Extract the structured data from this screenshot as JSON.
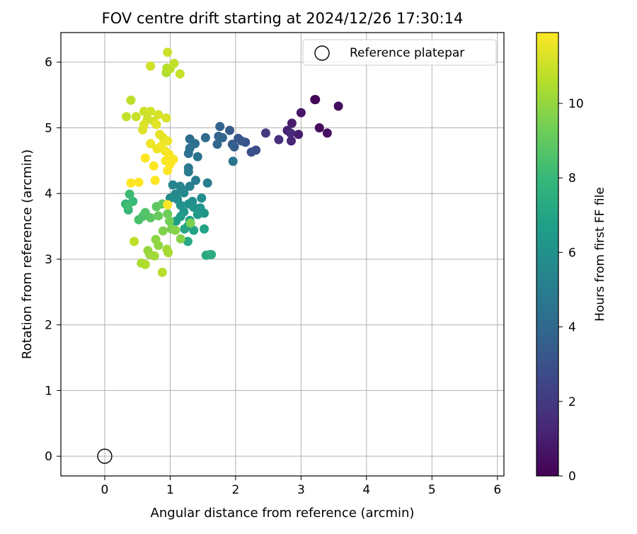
{
  "chart_data": {
    "type": "scatter",
    "title": "FOV centre drift starting at 2024/12/26 17:30:14",
    "xlabel": "Angular distance from reference (arcmin)",
    "ylabel": "Rotation from reference (arcmin)",
    "xlim": [
      -0.67,
      6.1
    ],
    "ylim": [
      -0.3,
      6.45
    ],
    "xticks": [
      0,
      1,
      2,
      3,
      4,
      5,
      6
    ],
    "yticks": [
      0,
      1,
      2,
      3,
      4,
      5,
      6
    ],
    "grid": true,
    "legend": {
      "position": "top-right",
      "entries": [
        "Reference platepar"
      ]
    },
    "colorbar": {
      "label": "Hours from first FF file",
      "colormap": "viridis",
      "range": [
        0,
        11.9
      ],
      "ticks": [
        0,
        2,
        4,
        6,
        8,
        10
      ]
    },
    "reference_point": {
      "x": 0,
      "y": 0
    },
    "points": [
      [
        3.21,
        5.43,
        0.0
      ],
      [
        3.22,
        5.43,
        0.1
      ],
      [
        3.28,
        5.0,
        0.3
      ],
      [
        3.57,
        5.33,
        0.4
      ],
      [
        3.4,
        4.92,
        0.5
      ],
      [
        3.0,
        5.23,
        0.7
      ],
      [
        2.86,
        5.07,
        0.9
      ],
      [
        2.96,
        4.9,
        1.0
      ],
      [
        2.79,
        4.96,
        1.1
      ],
      [
        2.85,
        4.8,
        1.3
      ],
      [
        2.84,
        4.92,
        1.4
      ],
      [
        2.66,
        4.82,
        1.6
      ],
      [
        2.46,
        4.92,
        2.0
      ],
      [
        2.31,
        4.66,
        2.8
      ],
      [
        2.24,
        4.63,
        3.0
      ],
      [
        2.15,
        4.78,
        3.1
      ],
      [
        2.04,
        4.84,
        3.2
      ],
      [
        2.09,
        4.8,
        3.3
      ],
      [
        1.91,
        4.96,
        3.4
      ],
      [
        1.95,
        4.75,
        3.5
      ],
      [
        1.98,
        4.71,
        3.6
      ],
      [
        1.76,
        5.02,
        3.7
      ],
      [
        1.74,
        4.87,
        3.8
      ],
      [
        1.8,
        4.85,
        3.9
      ],
      [
        1.72,
        4.75,
        4.0
      ],
      [
        1.54,
        4.85,
        4.1
      ],
      [
        1.3,
        4.83,
        4.2
      ],
      [
        1.38,
        4.76,
        4.3
      ],
      [
        1.3,
        4.69,
        4.4
      ],
      [
        1.28,
        4.61,
        4.5
      ],
      [
        1.42,
        4.56,
        4.6
      ],
      [
        1.96,
        4.49,
        4.7
      ],
      [
        1.28,
        4.39,
        4.8
      ],
      [
        1.28,
        4.33,
        4.9
      ],
      [
        1.39,
        4.2,
        5.0
      ],
      [
        1.57,
        4.16,
        5.1
      ],
      [
        1.3,
        4.11,
        5.2
      ],
      [
        1.2,
        4.05,
        5.3
      ],
      [
        1.15,
        4.11,
        5.4
      ],
      [
        1.04,
        4.13,
        5.4
      ],
      [
        1.08,
        3.99,
        5.5
      ],
      [
        1.21,
        4.01,
        5.6
      ],
      [
        1.11,
        3.91,
        5.7
      ],
      [
        1.0,
        3.93,
        5.7
      ],
      [
        1.48,
        3.93,
        5.8
      ],
      [
        1.34,
        3.88,
        5.9
      ],
      [
        1.28,
        3.84,
        6.0
      ],
      [
        1.16,
        3.82,
        6.0
      ],
      [
        1.36,
        3.79,
        6.1
      ],
      [
        1.46,
        3.78,
        6.2
      ],
      [
        1.52,
        3.7,
        6.3
      ],
      [
        1.21,
        3.72,
        6.3
      ],
      [
        1.42,
        3.68,
        6.4
      ],
      [
        1.16,
        3.65,
        6.5
      ],
      [
        1.3,
        3.59,
        6.6
      ],
      [
        1.09,
        3.58,
        6.6
      ],
      [
        1.27,
        3.5,
        6.7
      ],
      [
        1.52,
        3.46,
        6.8
      ],
      [
        1.36,
        3.44,
        6.9
      ],
      [
        1.22,
        3.46,
        7.0
      ],
      [
        1.27,
        3.27,
        7.1
      ],
      [
        1.55,
        3.06,
        7.2
      ],
      [
        1.61,
        3.07,
        7.3
      ],
      [
        1.63,
        3.07,
        7.4
      ],
      [
        0.32,
        3.84,
        7.8
      ],
      [
        0.36,
        3.75,
        7.9
      ],
      [
        0.43,
        3.88,
        8.0
      ],
      [
        0.38,
        3.99,
        8.1
      ],
      [
        0.35,
        3.81,
        8.2
      ],
      [
        0.52,
        3.6,
        8.4
      ],
      [
        0.58,
        3.65,
        8.5
      ],
      [
        0.62,
        3.71,
        8.6
      ],
      [
        0.7,
        3.63,
        8.8
      ],
      [
        0.79,
        3.8,
        8.9
      ],
      [
        0.88,
        3.84,
        9.0
      ],
      [
        0.82,
        3.66,
        9.1
      ],
      [
        0.96,
        3.69,
        9.2
      ],
      [
        0.99,
        3.58,
        9.3
      ],
      [
        1.02,
        3.46,
        9.4
      ],
      [
        1.31,
        3.55,
        9.5
      ],
      [
        0.89,
        3.43,
        9.6
      ],
      [
        1.08,
        3.44,
        9.7
      ],
      [
        1.16,
        3.31,
        9.7
      ],
      [
        0.78,
        3.3,
        9.8
      ],
      [
        0.82,
        3.21,
        9.9
      ],
      [
        0.66,
        3.13,
        10.0
      ],
      [
        0.69,
        3.07,
        10.1
      ],
      [
        0.76,
        3.05,
        10.2
      ],
      [
        0.95,
        3.15,
        10.2
      ],
      [
        0.97,
        3.1,
        10.3
      ],
      [
        0.56,
        2.94,
        10.4
      ],
      [
        0.62,
        2.92,
        10.5
      ],
      [
        0.88,
        2.8,
        10.6
      ],
      [
        0.45,
        3.27,
        10.7
      ],
      [
        0.4,
        5.42,
        10.7
      ],
      [
        0.33,
        5.17,
        10.8
      ],
      [
        0.48,
        5.17,
        10.9
      ],
      [
        0.6,
        5.25,
        11.0
      ],
      [
        0.65,
        5.13,
        11.0
      ],
      [
        0.7,
        5.25,
        11.1
      ],
      [
        0.75,
        5.1,
        11.1
      ],
      [
        0.82,
        5.2,
        11.2
      ],
      [
        0.94,
        5.15,
        11.2
      ],
      [
        0.6,
        5.05,
        11.3
      ],
      [
        0.58,
        4.97,
        11.3
      ],
      [
        0.79,
        5.05,
        11.4
      ],
      [
        0.84,
        4.9,
        11.5
      ],
      [
        0.89,
        4.85,
        11.5
      ],
      [
        0.96,
        4.8,
        11.6
      ],
      [
        0.7,
        4.76,
        11.6
      ],
      [
        0.8,
        4.68,
        11.6
      ],
      [
        0.86,
        4.72,
        11.7
      ],
      [
        0.92,
        4.65,
        11.7
      ],
      [
        0.98,
        4.6,
        11.8
      ],
      [
        1.05,
        4.52,
        11.8
      ],
      [
        0.93,
        4.5,
        11.8
      ],
      [
        1.0,
        4.45,
        11.9
      ],
      [
        0.96,
        4.35,
        11.9
      ],
      [
        0.75,
        4.42,
        11.9
      ],
      [
        0.62,
        4.54,
        11.9
      ],
      [
        0.77,
        4.2,
        11.9
      ],
      [
        0.4,
        4.16,
        11.9
      ],
      [
        0.52,
        4.17,
        11.9
      ],
      [
        0.96,
        3.83,
        11.9
      ],
      [
        0.94,
        5.84,
        10.5
      ],
      [
        0.95,
        5.91,
        10.6
      ],
      [
        1.0,
        5.9,
        10.7
      ],
      [
        1.06,
        5.98,
        10.8
      ],
      [
        1.15,
        5.82,
        10.9
      ],
      [
        0.96,
        6.15,
        11.0
      ],
      [
        0.7,
        5.94,
        11.1
      ]
    ]
  }
}
